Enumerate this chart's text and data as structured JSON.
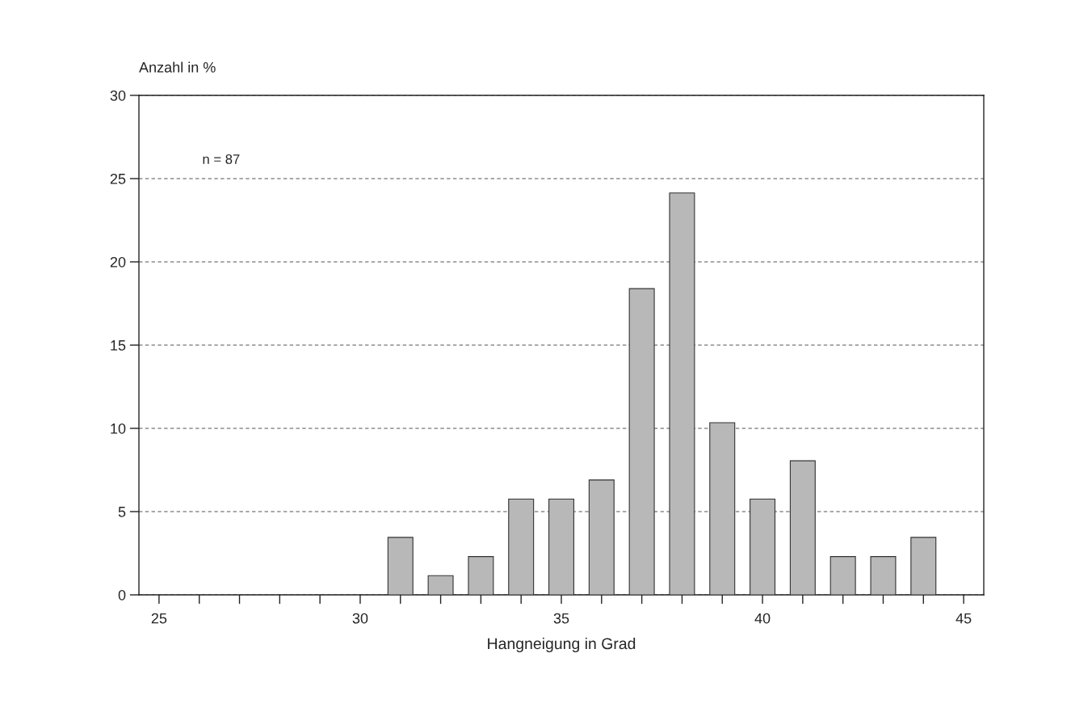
{
  "chart_data": {
    "type": "bar",
    "xlabel": "Hangneigung in Grad",
    "ylabel": "Anzahl in %",
    "annotations": [
      "n = 87"
    ],
    "x": [
      31,
      32,
      33,
      34,
      35,
      36,
      37,
      38,
      39,
      40,
      41,
      42,
      43,
      44
    ],
    "values": [
      3.45,
      1.15,
      2.3,
      5.75,
      5.75,
      6.9,
      18.39,
      24.14,
      10.34,
      5.75,
      8.05,
      2.3,
      2.3,
      3.45
    ],
    "color": "#b8b8b8",
    "xlim": [
      24.5,
      45.5
    ],
    "xticks": [
      25,
      {
        "value": 26,
        "label": null
      },
      {
        "value": 27,
        "label": null
      },
      {
        "value": 28,
        "label": null
      },
      {
        "value": 29,
        "label": null
      },
      30,
      {
        "value": 31,
        "label": null
      },
      {
        "value": 32,
        "label": null
      },
      {
        "value": 33,
        "label": null
      },
      {
        "value": 34,
        "label": null
      },
      35,
      {
        "value": 36,
        "label": null
      },
      {
        "value": 37,
        "label": null
      },
      {
        "value": 38,
        "label": null
      },
      {
        "value": 39,
        "label": null
      },
      40,
      {
        "value": 41,
        "label": null
      },
      {
        "value": 42,
        "label": null
      },
      {
        "value": 43,
        "label": null
      },
      {
        "value": 44,
        "label": null
      },
      45
    ],
    "ylim": [
      0,
      30
    ],
    "yticks": [
      0,
      5,
      10,
      15,
      20,
      25,
      30
    ],
    "grid": "y"
  }
}
